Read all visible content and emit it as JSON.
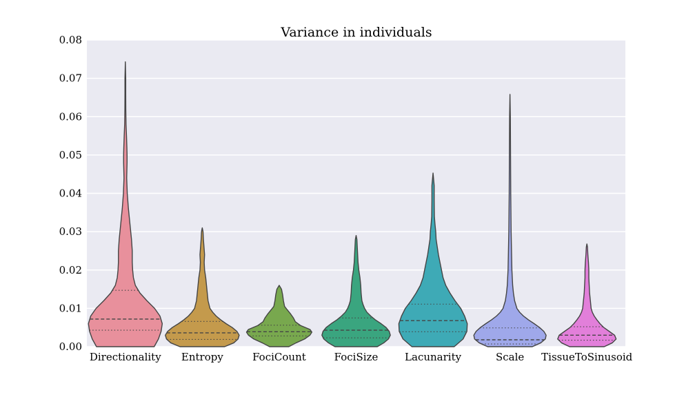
{
  "chart_data": {
    "type": "violin",
    "title": "Variance in individuals",
    "xlabel": "",
    "ylabel": "",
    "ylim": [
      0,
      0.08
    ],
    "yticks": [
      "0.00",
      "0.01",
      "0.02",
      "0.03",
      "0.04",
      "0.05",
      "0.06",
      "0.07",
      "0.08"
    ],
    "grid": true,
    "inner": "quartile",
    "categories": [
      "Directionality",
      "Entropy",
      "FociCount",
      "FociSize",
      "Lacunarity",
      "Scale",
      "TissueToSinusoid"
    ],
    "series": [
      {
        "category": "Directionality",
        "color": "#e8909c",
        "min": 0.0,
        "max": 0.0743,
        "quartiles": [
          0.0043,
          0.0072,
          0.0147
        ],
        "profile": [
          [
            0.0,
            0.75
          ],
          [
            0.002,
            0.86
          ],
          [
            0.004,
            0.93
          ],
          [
            0.006,
            0.96
          ],
          [
            0.008,
            0.9
          ],
          [
            0.01,
            0.76
          ],
          [
            0.012,
            0.56
          ],
          [
            0.014,
            0.38
          ],
          [
            0.016,
            0.26
          ],
          [
            0.018,
            0.21
          ],
          [
            0.02,
            0.19
          ],
          [
            0.022,
            0.18
          ],
          [
            0.025,
            0.18
          ],
          [
            0.028,
            0.16
          ],
          [
            0.031,
            0.13
          ],
          [
            0.034,
            0.1
          ],
          [
            0.036,
            0.08
          ],
          [
            0.04,
            0.05
          ],
          [
            0.044,
            0.035
          ],
          [
            0.048,
            0.045
          ],
          [
            0.05,
            0.045
          ],
          [
            0.052,
            0.04
          ],
          [
            0.055,
            0.03
          ],
          [
            0.058,
            0.018
          ],
          [
            0.062,
            0.012
          ],
          [
            0.066,
            0.01
          ],
          [
            0.07,
            0.01
          ],
          [
            0.0743,
            0.0
          ]
        ]
      },
      {
        "category": "Entropy",
        "color": "#c49a4c",
        "min": 0.0,
        "max": 0.031,
        "quartiles": [
          0.0019,
          0.0036,
          0.0066
        ],
        "profile": [
          [
            0.0,
            0.58
          ],
          [
            0.001,
            0.82
          ],
          [
            0.002,
            0.93
          ],
          [
            0.003,
            0.96
          ],
          [
            0.004,
            0.9
          ],
          [
            0.005,
            0.78
          ],
          [
            0.006,
            0.62
          ],
          [
            0.007,
            0.48
          ],
          [
            0.008,
            0.36
          ],
          [
            0.009,
            0.27
          ],
          [
            0.01,
            0.2
          ],
          [
            0.012,
            0.15
          ],
          [
            0.014,
            0.13
          ],
          [
            0.016,
            0.11
          ],
          [
            0.018,
            0.09
          ],
          [
            0.02,
            0.06
          ],
          [
            0.022,
            0.05
          ],
          [
            0.024,
            0.06
          ],
          [
            0.026,
            0.045
          ],
          [
            0.028,
            0.03
          ],
          [
            0.03,
            0.02
          ],
          [
            0.031,
            0.0
          ]
        ]
      },
      {
        "category": "FociCount",
        "color": "#78a84e",
        "min": 0.0,
        "max": 0.016,
        "quartiles": [
          0.0028,
          0.0039,
          0.0056
        ],
        "profile": [
          [
            0.0,
            0.25
          ],
          [
            0.001,
            0.44
          ],
          [
            0.002,
            0.66
          ],
          [
            0.003,
            0.8
          ],
          [
            0.0038,
            0.85
          ],
          [
            0.0045,
            0.8
          ],
          [
            0.0055,
            0.56
          ],
          [
            0.0065,
            0.42
          ],
          [
            0.0075,
            0.37
          ],
          [
            0.0085,
            0.3
          ],
          [
            0.0095,
            0.22
          ],
          [
            0.0105,
            0.14
          ],
          [
            0.012,
            0.11
          ],
          [
            0.0135,
            0.09
          ],
          [
            0.015,
            0.06
          ],
          [
            0.016,
            0.0
          ]
        ]
      },
      {
        "category": "FociSize",
        "color": "#3aa57f",
        "min": 0.0,
        "max": 0.029,
        "quartiles": [
          0.0023,
          0.0043,
          0.0075
        ],
        "profile": [
          [
            0.0,
            0.55
          ],
          [
            0.001,
            0.72
          ],
          [
            0.002,
            0.84
          ],
          [
            0.003,
            0.89
          ],
          [
            0.004,
            0.86
          ],
          [
            0.005,
            0.78
          ],
          [
            0.006,
            0.65
          ],
          [
            0.007,
            0.5
          ],
          [
            0.008,
            0.38
          ],
          [
            0.009,
            0.28
          ],
          [
            0.01,
            0.22
          ],
          [
            0.011,
            0.18
          ],
          [
            0.012,
            0.15
          ],
          [
            0.014,
            0.13
          ],
          [
            0.016,
            0.12
          ],
          [
            0.018,
            0.1
          ],
          [
            0.02,
            0.07
          ],
          [
            0.022,
            0.05
          ],
          [
            0.024,
            0.04
          ],
          [
            0.026,
            0.03
          ],
          [
            0.028,
            0.02
          ],
          [
            0.029,
            0.0
          ]
        ]
      },
      {
        "category": "Lacunarity",
        "color": "#3eaab6",
        "min": 0.0,
        "max": 0.0453,
        "quartiles": [
          0.0039,
          0.0068,
          0.0111
        ],
        "profile": [
          [
            0.0,
            0.55
          ],
          [
            0.002,
            0.78
          ],
          [
            0.004,
            0.88
          ],
          [
            0.006,
            0.89
          ],
          [
            0.008,
            0.82
          ],
          [
            0.01,
            0.72
          ],
          [
            0.012,
            0.57
          ],
          [
            0.014,
            0.44
          ],
          [
            0.016,
            0.33
          ],
          [
            0.018,
            0.26
          ],
          [
            0.02,
            0.22
          ],
          [
            0.022,
            0.18
          ],
          [
            0.024,
            0.14
          ],
          [
            0.026,
            0.11
          ],
          [
            0.028,
            0.08
          ],
          [
            0.03,
            0.07
          ],
          [
            0.032,
            0.05
          ],
          [
            0.034,
            0.035
          ],
          [
            0.038,
            0.03
          ],
          [
            0.042,
            0.03
          ],
          [
            0.0453,
            0.0
          ]
        ]
      },
      {
        "category": "Scale",
        "color": "#9fa8ea",
        "min": 0.0,
        "max": 0.0658,
        "quartiles": [
          0.0007,
          0.0018,
          0.0049
        ],
        "profile": [
          [
            0.0,
            0.58
          ],
          [
            0.001,
            0.8
          ],
          [
            0.002,
            0.92
          ],
          [
            0.003,
            0.94
          ],
          [
            0.004,
            0.88
          ],
          [
            0.005,
            0.77
          ],
          [
            0.006,
            0.63
          ],
          [
            0.007,
            0.48
          ],
          [
            0.008,
            0.35
          ],
          [
            0.009,
            0.25
          ],
          [
            0.01,
            0.18
          ],
          [
            0.012,
            0.12
          ],
          [
            0.014,
            0.09
          ],
          [
            0.016,
            0.07
          ],
          [
            0.02,
            0.05
          ],
          [
            0.025,
            0.04
          ],
          [
            0.03,
            0.03
          ],
          [
            0.04,
            0.02
          ],
          [
            0.05,
            0.015
          ],
          [
            0.06,
            0.01
          ],
          [
            0.0658,
            0.0
          ]
        ]
      },
      {
        "category": "TissueToSinusoid",
        "color": "#e27fda",
        "min": 0.0,
        "max": 0.0268,
        "quartiles": [
          0.0017,
          0.003,
          0.0052
        ],
        "profile": [
          [
            0.0,
            0.45
          ],
          [
            0.001,
            0.66
          ],
          [
            0.002,
            0.76
          ],
          [
            0.003,
            0.72
          ],
          [
            0.004,
            0.58
          ],
          [
            0.005,
            0.44
          ],
          [
            0.006,
            0.34
          ],
          [
            0.007,
            0.26
          ],
          [
            0.008,
            0.19
          ],
          [
            0.009,
            0.14
          ],
          [
            0.01,
            0.11
          ],
          [
            0.012,
            0.09
          ],
          [
            0.014,
            0.07
          ],
          [
            0.016,
            0.06
          ],
          [
            0.018,
            0.05
          ],
          [
            0.02,
            0.05
          ],
          [
            0.022,
            0.04
          ],
          [
            0.024,
            0.025
          ],
          [
            0.026,
            0.015
          ],
          [
            0.0268,
            0.0
          ]
        ]
      }
    ]
  }
}
